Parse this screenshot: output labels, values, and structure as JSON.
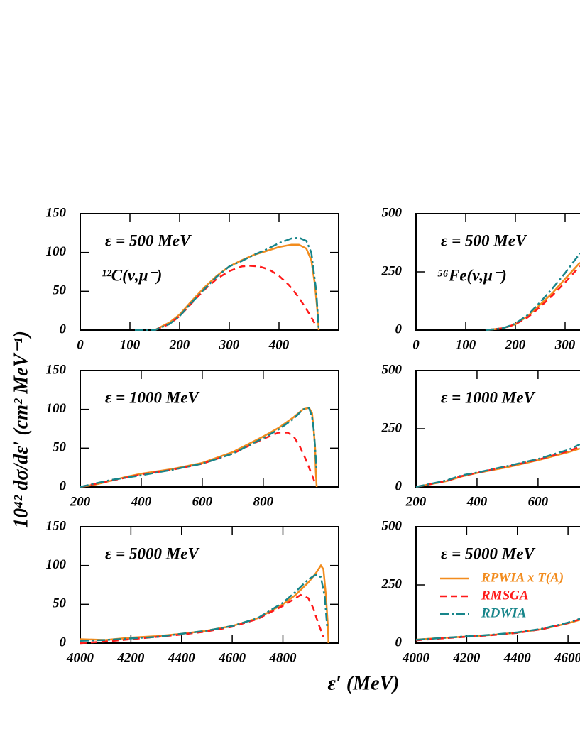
{
  "figure": {
    "ylabel": "10⁴² dσ/dε′ (cm² MeV⁻¹)",
    "xlabel": "ε′ (MeV)"
  },
  "chart_data": [
    {
      "type": "line",
      "xlim": [
        0,
        520
      ],
      "ylim": [
        0,
        150
      ],
      "xticks": [
        0,
        100,
        200,
        300,
        400
      ],
      "yticks": [
        0,
        50,
        100,
        150
      ],
      "annotations": [
        "ε = 500 MeV",
        "¹²C(ν,μ⁻)"
      ],
      "series": [
        {
          "color": "#f28c1e",
          "style": "solid",
          "x": [
            150,
            180,
            200,
            225,
            250,
            275,
            300,
            325,
            350,
            375,
            400,
            425,
            440,
            455,
            465,
            472,
            478,
            480
          ],
          "values": [
            0,
            10,
            20,
            38,
            55,
            70,
            82,
            90,
            97,
            102,
            107,
            110,
            110,
            105,
            90,
            60,
            20,
            0
          ]
        },
        {
          "color": "#ff1a1a",
          "style": "dashed",
          "x": [
            150,
            180,
            200,
            225,
            250,
            275,
            300,
            325,
            340,
            360,
            380,
            400,
            420,
            440,
            460,
            475
          ],
          "values": [
            0,
            8,
            18,
            35,
            52,
            66,
            76,
            82,
            83,
            82,
            78,
            70,
            58,
            42,
            22,
            5
          ]
        },
        {
          "color": "#17858a",
          "style": "dashdot",
          "x": [
            110,
            150,
            180,
            200,
            225,
            250,
            275,
            300,
            325,
            350,
            375,
            400,
            425,
            440,
            455,
            465,
            470,
            475,
            478,
            480
          ],
          "values": [
            0,
            0,
            8,
            18,
            36,
            53,
            69,
            82,
            89,
            97,
            104,
            112,
            118,
            119,
            115,
            100,
            75,
            50,
            20,
            0
          ]
        }
      ]
    },
    {
      "type": "line",
      "xlim": [
        200,
        1047
      ],
      "ylim": [
        0,
        150
      ],
      "xticks": [
        200,
        400,
        600,
        800
      ],
      "yticks": [
        0,
        50,
        100,
        150
      ],
      "annotations": [
        "ε = 1000 MeV"
      ],
      "series": [
        {
          "color": "#f28c1e",
          "style": "solid",
          "x": [
            200,
            250,
            300,
            350,
            400,
            500,
            600,
            700,
            800,
            850,
            900,
            930,
            950,
            960,
            965,
            970,
            972,
            975
          ],
          "values": [
            0,
            3,
            8,
            13,
            17,
            23,
            31,
            45,
            65,
            76,
            90,
            100,
            102,
            95,
            75,
            50,
            20,
            0
          ]
        },
        {
          "color": "#ff1a1a",
          "style": "dashed",
          "x": [
            200,
            300,
            400,
            500,
            600,
            700,
            800,
            850,
            880,
            900,
            920,
            940,
            960,
            970
          ],
          "values": [
            0,
            8,
            16,
            22,
            30,
            43,
            62,
            70,
            70,
            65,
            52,
            35,
            15,
            5
          ]
        },
        {
          "color": "#17858a",
          "style": "dashdot",
          "x": [
            200,
            300,
            400,
            500,
            600,
            700,
            800,
            850,
            900,
            930,
            950,
            960,
            965,
            970,
            975
          ],
          "values": [
            0,
            9,
            15,
            22,
            30,
            43,
            63,
            74,
            88,
            100,
            102,
            90,
            75,
            50,
            20
          ]
        }
      ]
    },
    {
      "type": "line",
      "xlim": [
        4000,
        5020
      ],
      "ylim": [
        0,
        150
      ],
      "xticks": [
        4000,
        4200,
        4400,
        4600,
        4800
      ],
      "yticks": [
        0,
        50,
        100,
        150
      ],
      "annotations": [
        "ε = 5000 MeV"
      ],
      "series": [
        {
          "color": "#f28c1e",
          "style": "solid",
          "x": [
            4000,
            4100,
            4200,
            4300,
            4400,
            4500,
            4600,
            4700,
            4800,
            4850,
            4900,
            4930,
            4950,
            4960,
            4970,
            4978,
            4980
          ],
          "values": [
            5,
            4,
            7,
            9,
            12,
            16,
            22,
            32,
            50,
            62,
            78,
            90,
            100,
            95,
            60,
            20,
            0
          ]
        },
        {
          "color": "#ff1a1a",
          "style": "dashed",
          "x": [
            4000,
            4100,
            4200,
            4300,
            4400,
            4500,
            4600,
            4700,
            4800,
            4850,
            4870,
            4900,
            4920,
            4940,
            4960
          ],
          "values": [
            0,
            2,
            5,
            8,
            11,
            15,
            21,
            31,
            48,
            58,
            62,
            58,
            45,
            25,
            8
          ]
        },
        {
          "color": "#17858a",
          "style": "dashdot",
          "x": [
            4000,
            4100,
            4200,
            4300,
            4400,
            4500,
            4600,
            4700,
            4800,
            4850,
            4900,
            4930,
            4950,
            4965,
            4975
          ],
          "values": [
            3,
            4,
            6,
            8,
            12,
            16,
            22,
            32,
            52,
            66,
            82,
            88,
            85,
            60,
            20
          ]
        }
      ]
    },
    {
      "type": "line",
      "xlim": [
        0,
        520
      ],
      "ylim": [
        0,
        500
      ],
      "xticks": [
        0,
        100,
        200,
        300
      ],
      "yticks": [
        0,
        250,
        500
      ],
      "annotations": [
        "ε = 500 MeV",
        "⁵⁶Fe(ν,μ⁻)"
      ],
      "series": [
        {
          "color": "#f28c1e",
          "style": "solid",
          "x": [
            140,
            175,
            200,
            225,
            250,
            275,
            300,
            330
          ],
          "values": [
            0,
            8,
            25,
            60,
            110,
            160,
            220,
            290
          ]
        },
        {
          "color": "#ff1a1a",
          "style": "dashed",
          "x": [
            140,
            175,
            200,
            225,
            250,
            275,
            300,
            330
          ],
          "values": [
            0,
            8,
            25,
            55,
            100,
            150,
            205,
            275
          ]
        },
        {
          "color": "#17858a",
          "style": "dashdot",
          "x": [
            140,
            175,
            200,
            225,
            250,
            275,
            300,
            330
          ],
          "values": [
            0,
            8,
            28,
            65,
            120,
            180,
            245,
            330
          ]
        }
      ]
    },
    {
      "type": "line",
      "xlim": [
        200,
        1047
      ],
      "ylim": [
        0,
        500
      ],
      "xticks": [
        200,
        400,
        600
      ],
      "yticks": [
        0,
        250,
        500
      ],
      "annotations": [
        "ε = 1000 MeV"
      ],
      "series": [
        {
          "color": "#f28c1e",
          "style": "solid",
          "x": [
            200,
            300,
            350,
            400,
            500,
            600,
            700,
            737
          ],
          "values": [
            0,
            25,
            45,
            60,
            85,
            115,
            150,
            165
          ]
        },
        {
          "color": "#ff1a1a",
          "style": "dashed",
          "x": [
            200,
            300,
            350,
            400,
            500,
            600,
            700,
            737
          ],
          "values": [
            0,
            26,
            47,
            61,
            88,
            117,
            155,
            172
          ]
        },
        {
          "color": "#17858a",
          "style": "dashdot",
          "x": [
            200,
            300,
            350,
            400,
            500,
            600,
            700,
            737
          ],
          "values": [
            0,
            28,
            50,
            62,
            90,
            120,
            160,
            183
          ]
        }
      ]
    },
    {
      "type": "line",
      "xlim": [
        4000,
        5020
      ],
      "ylim": [
        0,
        500
      ],
      "xticks": [
        4000,
        4200,
        4400,
        4600
      ],
      "yticks": [
        0,
        250,
        500
      ],
      "annotations": [
        "ε = 5000 MeV"
      ],
      "legend": "left",
      "series": [
        {
          "name": "RPWIA x T(A)",
          "color": "#f28c1e",
          "style": "solid",
          "x": [
            4000,
            4100,
            4200,
            4300,
            4400,
            4500,
            4600,
            4648
          ],
          "values": [
            15,
            22,
            28,
            35,
            45,
            60,
            85,
            100
          ]
        },
        {
          "name": "RMSGA",
          "color": "#ff1a1a",
          "style": "dashed",
          "x": [
            4000,
            4100,
            4200,
            4300,
            4400,
            4500,
            4600,
            4648
          ],
          "values": [
            12,
            20,
            27,
            34,
            44,
            60,
            86,
            103
          ]
        },
        {
          "name": "RDWIA",
          "color": "#17858a",
          "style": "dashdot",
          "x": [
            4000,
            4100,
            4200,
            4300,
            4400,
            4500,
            4600,
            4648
          ],
          "values": [
            14,
            22,
            29,
            36,
            46,
            62,
            88,
            105
          ]
        }
      ]
    }
  ]
}
